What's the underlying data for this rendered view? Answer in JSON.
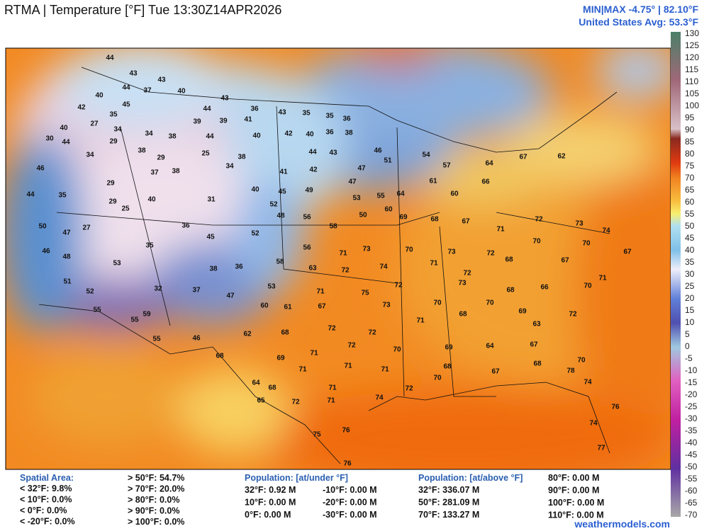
{
  "header": {
    "title": "RTMA | Temperature [°F]  Tue 13:30Z14APR2026",
    "minmax": "MIN|MAX -4.75°  | 82.10°F",
    "average": "United States Avg: 53.3°F"
  },
  "colorbar": {
    "ticks": [
      130,
      125,
      120,
      115,
      110,
      105,
      100,
      95,
      90,
      85,
      80,
      75,
      70,
      65,
      60,
      55,
      50,
      45,
      40,
      35,
      30,
      25,
      20,
      15,
      10,
      5,
      0,
      -5,
      -10,
      -15,
      -20,
      -25,
      -30,
      -35,
      -40,
      -45,
      -50,
      -55,
      -60,
      -65,
      -70
    ]
  },
  "map": {
    "station_values": [
      44,
      43,
      40,
      44,
      37,
      43,
      40,
      42,
      45,
      35,
      40,
      27,
      34,
      34,
      38,
      44,
      43,
      39,
      39,
      44,
      36,
      41,
      40,
      43,
      35,
      35,
      36,
      42,
      40,
      36,
      38,
      30,
      44,
      34,
      29,
      38,
      29,
      25,
      38,
      44,
      43,
      46,
      51,
      47,
      54,
      57,
      64,
      67,
      62,
      46,
      29,
      37,
      38,
      34,
      40,
      41,
      42,
      44,
      35,
      29,
      25,
      40,
      31,
      45,
      49,
      52,
      47,
      53,
      55,
      64,
      61,
      60,
      66,
      50,
      47,
      27,
      48,
      56,
      58,
      50,
      60,
      69,
      68,
      67,
      71,
      72,
      73,
      74,
      46,
      48,
      35,
      36,
      45,
      52,
      58,
      56,
      71,
      73,
      70,
      73,
      72,
      70,
      70,
      67,
      53,
      38,
      36,
      63,
      72,
      74,
      71,
      72,
      68,
      67,
      71,
      51,
      52,
      32,
      37,
      47,
      53,
      60,
      61,
      71,
      75,
      72,
      73,
      68,
      66,
      70,
      55,
      55,
      59,
      55,
      46,
      62,
      68,
      67,
      73,
      70,
      70,
      69,
      72,
      72,
      72,
      71,
      68,
      63,
      68,
      69,
      71,
      72,
      70,
      69,
      64,
      67,
      70,
      71,
      71,
      71,
      68,
      67,
      68,
      78,
      64,
      68,
      71,
      70,
      74,
      65,
      72,
      71,
      74,
      72,
      76,
      74,
      75,
      76,
      76,
      77
    ]
  },
  "stats": {
    "spatial_area": {
      "title": "Spatial Area:",
      "below": [
        "< 32°F: 9.8%",
        "< 10°F: 0.0%",
        "< 0°F: 0.0%",
        "< -20°F: 0.0%"
      ],
      "above": [
        "> 50°F: 54.7%",
        "> 70°F: 20.0%",
        "> 80°F: 0.0%",
        "> 90°F: 0.0%",
        "> 100°F: 0.0%"
      ]
    },
    "population_under": {
      "title": "Population: [at/under °F]",
      "col1": [
        "32°F: 0.92 M",
        "10°F: 0.00 M",
        "0°F: 0.00 M"
      ],
      "col2": [
        "-10°F: 0.00 M",
        "-20°F: 0.00 M",
        "-30°F: 0.00 M"
      ]
    },
    "population_above": {
      "title": "Population: [at/above °F]",
      "col1": [
        "32°F: 336.07 M",
        "50°F: 281.09 M",
        "70°F: 133.27 M"
      ],
      "col2": [
        "80°F: 0.00 M",
        "90°F: 0.00 M",
        "100°F: 0.00 M",
        "110°F: 0.00 M"
      ]
    }
  },
  "footer": {
    "credit": "weathermodels.com"
  }
}
